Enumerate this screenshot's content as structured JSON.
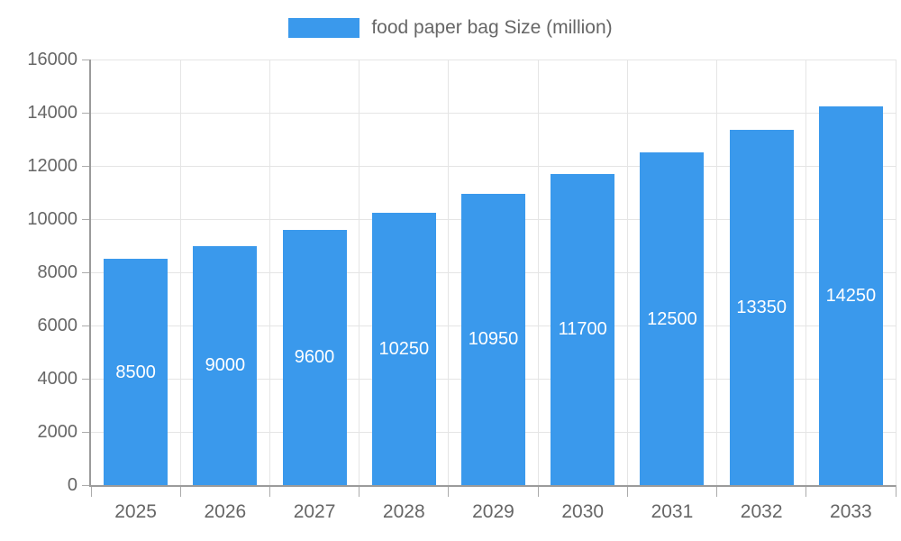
{
  "legend": {
    "label": "food paper bag Size (million)"
  },
  "colors": {
    "bar": "#3a99ec",
    "bar_label": "#ffffff",
    "grid": "#e5e5e5",
    "axis": "#9b9b9b",
    "tick": "#ababab",
    "tick_text": "#666666",
    "legend_text": "#666666",
    "background": "#ffffff"
  },
  "chart_data": {
    "type": "bar",
    "title": "food paper bag Size (million)",
    "categories": [
      "2025",
      "2026",
      "2027",
      "2028",
      "2029",
      "2030",
      "2031",
      "2032",
      "2033"
    ],
    "values": [
      8500,
      9000,
      9600,
      10250,
      10950,
      11700,
      12500,
      13350,
      14250
    ],
    "series_name": "food paper bag Size (million)",
    "xlabel": "",
    "ylabel": "",
    "ylim": [
      0,
      16000
    ],
    "ytick_step": 2000,
    "yticks": [
      0,
      2000,
      4000,
      6000,
      8000,
      10000,
      12000,
      14000,
      16000
    ],
    "grid": "both",
    "legend_position": "top",
    "bar_value_labels": "inside-middle"
  }
}
